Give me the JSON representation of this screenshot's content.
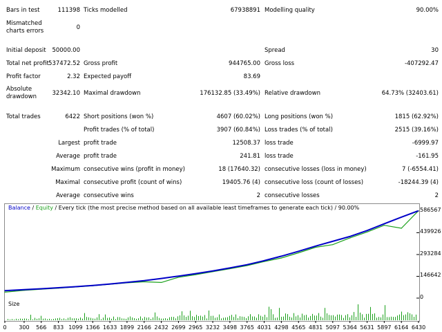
{
  "report": {
    "bars_in_test_label": "Bars in test",
    "bars_in_test": "111398",
    "ticks_modelled_label": "Ticks modelled",
    "ticks_modelled": "67938891",
    "modelling_quality_label": "Modelling quality",
    "modelling_quality": "90.00%",
    "mismatched_label": "Mismatched charts errors",
    "mismatched": "0",
    "initial_deposit_label": "Initial deposit",
    "initial_deposit": "50000.00",
    "spread_label": "Spread",
    "spread": "30",
    "total_net_profit_label": "Total net profit",
    "total_net_profit": "537472.52",
    "gross_profit_label": "Gross profit",
    "gross_profit": "944765.00",
    "gross_loss_label": "Gross loss",
    "gross_loss": "-407292.47",
    "profit_factor_label": "Profit factor",
    "profit_factor": "2.32",
    "expected_payoff_label": "Expected payoff",
    "expected_payoff": "83.69",
    "absolute_drawdown_label": "Absolute drawdown",
    "absolute_drawdown": "32342.10",
    "maximal_drawdown_label": "Maximal drawdown",
    "maximal_drawdown": "176132.85 (33.49%)",
    "relative_drawdown_label": "Relative drawdown",
    "relative_drawdown": "64.73% (32403.61)",
    "total_trades_label": "Total trades",
    "total_trades": "6422",
    "short_positions_label": "Short positions (won %)",
    "short_positions": "4607 (60.02%)",
    "long_positions_label": "Long positions (won %)",
    "long_positions": "1815 (62.92%)",
    "profit_trades_label": "Profit trades (% of total)",
    "profit_trades": "3907 (60.84%)",
    "loss_trades_label": "Loss trades (% of total)",
    "loss_trades": "2515 (39.16%)",
    "largest_label": "Largest",
    "largest_profit_trade_label": "profit trade",
    "largest_profit_trade": "12508.37",
    "largest_loss_trade_label": "loss trade",
    "largest_loss_trade": "-6999.97",
    "average_label": "Average",
    "average_profit_trade_label": "profit trade",
    "average_profit_trade": "241.81",
    "average_loss_trade_label": "loss trade",
    "average_loss_trade": "-161.95",
    "maximum_label": "Maximum",
    "max_cons_wins_label": "consecutive wins (profit in money)",
    "max_cons_wins": "18 (17640.32)",
    "max_cons_losses_label": "consecutive losses (loss in money)",
    "max_cons_losses": "7 (-6554.41)",
    "maximal_label": "Maximal",
    "maximal_cons_profit_label": "consecutive profit (count of wins)",
    "maximal_cons_profit": "19405.76 (4)",
    "maximal_cons_loss_label": "consecutive loss (count of losses)",
    "maximal_cons_loss": "-18244.39 (4)",
    "average2_label": "Average",
    "avg_cons_wins_label": "consecutive wins",
    "avg_cons_wins": "2",
    "avg_cons_losses_label": "consecutive losses",
    "avg_cons_losses": "2"
  },
  "chart": {
    "legend_balance": "Balance",
    "legend_sep": " / ",
    "legend_equity": "Equity",
    "legend_rest": " / Every tick (the most precise method based on all available least timeframes to generate each tick) / 90.00%",
    "size_label": "Size",
    "y_ticks": [
      "586567",
      "439926",
      "293284",
      "146642",
      "0"
    ],
    "x_ticks": [
      "0",
      "300",
      "566",
      "833",
      "1099",
      "1366",
      "1633",
      "1899",
      "2166",
      "2432",
      "2699",
      "2965",
      "3232",
      "3498",
      "3765",
      "4031",
      "4298",
      "4565",
      "4831",
      "5097",
      "5364",
      "5631",
      "5897",
      "6164",
      "6430"
    ],
    "colors": {
      "balance": "#0000c8",
      "equity": "#1aa01a",
      "size": "#1aa01a",
      "grid": "#d0d0d0"
    }
  },
  "chart_data": {
    "type": "line",
    "x": [
      0,
      300,
      566,
      833,
      1099,
      1366,
      1633,
      1899,
      2166,
      2432,
      2699,
      2965,
      3232,
      3498,
      3765,
      4031,
      4298,
      4565,
      4831,
      5097,
      5364,
      5631,
      5897,
      6164,
      6422
    ],
    "series": [
      {
        "name": "Balance",
        "values": [
          50000,
          57000,
          63000,
          70000,
          77000,
          85000,
          95000,
          106000,
          118000,
          132000,
          148000,
          165000,
          183000,
          203000,
          225000,
          252000,
          282000,
          315000,
          350000,
          382000,
          415000,
          455000,
          500000,
          545000,
          587000
        ]
      },
      {
        "name": "Equity",
        "values": [
          40000,
          52000,
          60000,
          67000,
          75000,
          83000,
          93000,
          103000,
          110000,
          105000,
          140000,
          158000,
          178000,
          198000,
          219000,
          246000,
          270000,
          305000,
          342000,
          360000,
          405000,
          445000,
          490000,
          470000,
          585000
        ]
      }
    ],
    "ylim": [
      0,
      586567
    ],
    "xlim": [
      0,
      6430
    ]
  }
}
